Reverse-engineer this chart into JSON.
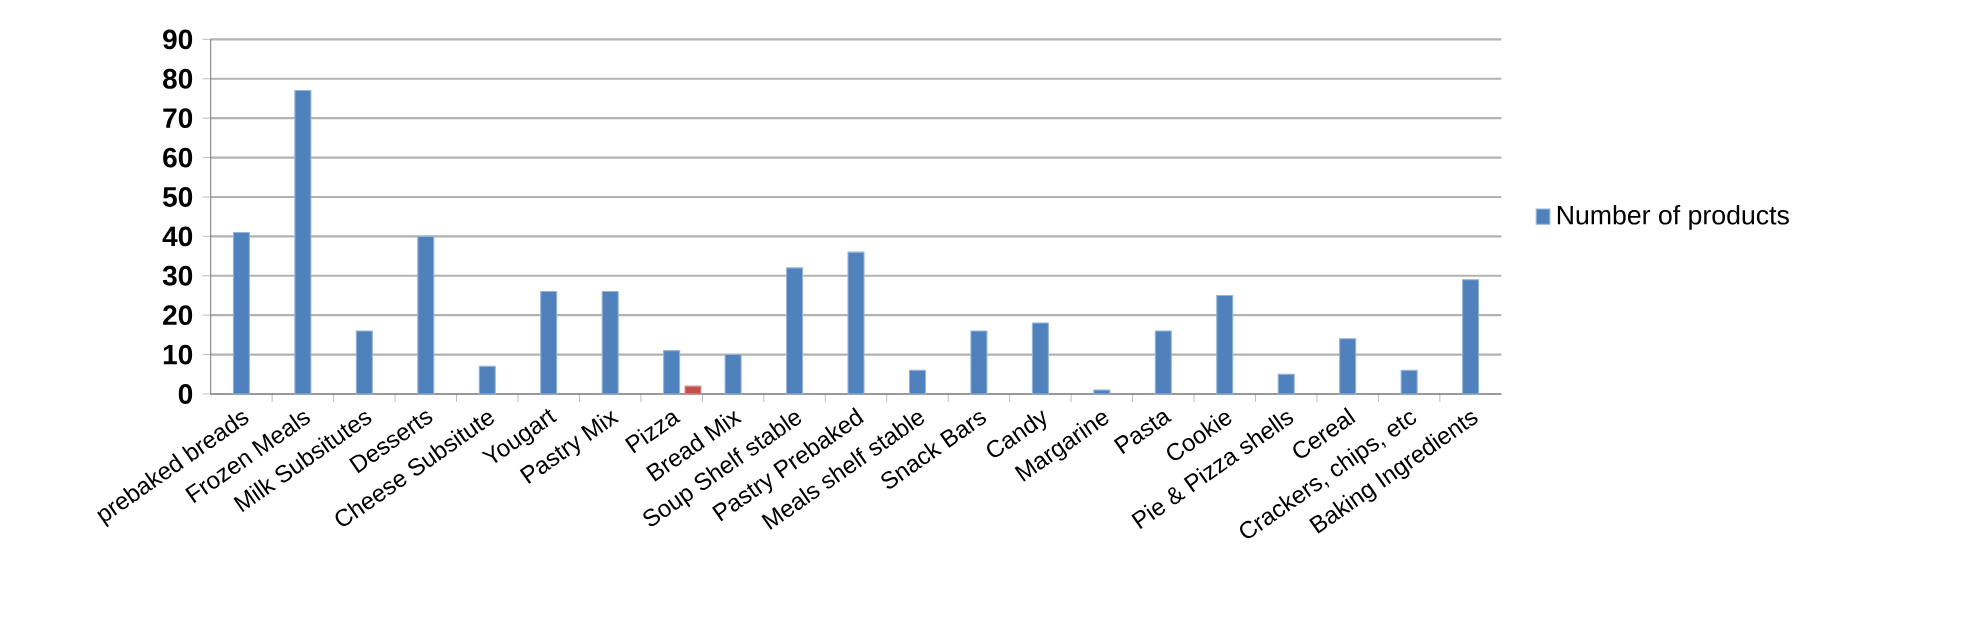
{
  "chart_data": {
    "type": "bar",
    "categories": [
      "prebaked breads",
      "Frozen Meals",
      "Milk Subsitutes",
      "Desserts",
      "Cheese Subsitute",
      "Yougart",
      "Pastry Mix",
      "Pizza",
      "Bread Mix",
      "Soup Shelf stable",
      "Pastry Prebaked",
      "Meals shelf stable",
      "Snack Bars",
      "Candy",
      "Margarine",
      "Pasta",
      "Cookie",
      "Pie & Pizza shells",
      "Cereal",
      "Crackers, chips, etc",
      "Baking Ingredients"
    ],
    "series": [
      {
        "name": "Number of products",
        "color": "#4f81bd",
        "values": [
          41,
          77,
          16,
          40,
          7,
          26,
          26,
          11,
          10,
          32,
          36,
          6,
          16,
          18,
          1,
          16,
          25,
          5,
          14,
          6,
          29
        ]
      },
      {
        "color": "#c0504d",
        "values": [
          null,
          null,
          null,
          null,
          null,
          null,
          null,
          2,
          null,
          null,
          null,
          null,
          null,
          null,
          null,
          null,
          null,
          null,
          null,
          null,
          null
        ]
      }
    ],
    "ylim": [
      0,
      90
    ],
    "yticks": [
      0,
      10,
      20,
      30,
      40,
      50,
      60,
      70,
      80,
      90
    ],
    "grid": "y",
    "legend": "right"
  }
}
